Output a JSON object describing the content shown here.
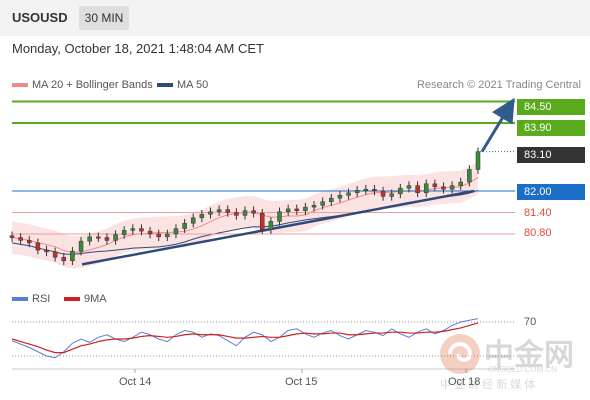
{
  "header": {
    "symbol": "USOUSD",
    "timeframe": "30 MIN"
  },
  "datetime": "Monday, October 18, 2021 1:48:04 AM CET",
  "legend": {
    "bollinger": {
      "label": "MA 20 + Bollinger Bands",
      "color": "#f08a8a"
    },
    "ma50": {
      "label": "MA 50",
      "color": "#2f4a7a"
    }
  },
  "copyright": "Research © 2021 Trading Central",
  "levels": [
    {
      "value": "84.50",
      "kind": "resistance",
      "color": "#5aaa1e"
    },
    {
      "value": "83.90",
      "kind": "resistance",
      "color": "#5aaa1e"
    },
    {
      "value": "83.10",
      "kind": "current",
      "color": "#333333"
    },
    {
      "value": "82.00",
      "kind": "pivot",
      "color": "#1a6ec8"
    },
    {
      "value": "81.40",
      "kind": "support",
      "color": "#e04a3a"
    },
    {
      "value": "80.80",
      "kind": "support",
      "color": "#e04a3a"
    }
  ],
  "rsi_panel": {
    "rsi_label": "RSI",
    "rsi_color": "#5b7fd0",
    "ma_label": "9MA",
    "ma_color": "#cc2222",
    "level_label": "70"
  },
  "x_axis": {
    "labels": [
      "Oct 14",
      "Oct 15",
      "Oct 18"
    ]
  },
  "watermark": {
    "text": "中金网",
    "sub": "CNGOLD.COM.CN",
    "tagline": "中 金 财 经 新 媒 体"
  },
  "chart_data": {
    "type": "candlestick",
    "symbol": "USOUSD",
    "interval": "30 MIN",
    "ylim": [
      80.0,
      85.0
    ],
    "price_path": [
      80.7,
      80.62,
      80.55,
      80.35,
      80.3,
      80.15,
      80.05,
      80.32,
      80.6,
      80.72,
      80.7,
      80.62,
      80.78,
      80.9,
      80.95,
      80.88,
      80.8,
      80.72,
      80.8,
      80.95,
      81.1,
      81.25,
      81.35,
      81.42,
      81.48,
      81.4,
      81.32,
      81.45,
      81.38,
      80.92,
      81.15,
      81.42,
      81.5,
      81.45,
      81.55,
      81.6,
      81.7,
      81.8,
      81.88,
      81.95,
      82.02,
      82.05,
      82.0,
      81.85,
      81.92,
      82.08,
      82.15,
      81.95,
      82.2,
      82.12,
      82.05,
      82.15,
      82.25,
      82.6,
      83.1
    ],
    "trendline": {
      "from": 79.95,
      "to": 82.0
    },
    "forecast_target": 84.5,
    "levels": {
      "resistance": [
        84.5,
        83.9
      ],
      "current": 83.1,
      "pivot": 82.0,
      "support": [
        81.4,
        80.8
      ]
    },
    "rsi": {
      "level": 70,
      "rsi_path": [
        48,
        44,
        40,
        35,
        30,
        28,
        35,
        45,
        50,
        46,
        52,
        55,
        50,
        47,
        52,
        58,
        55,
        50,
        47,
        55,
        60,
        58,
        52,
        56,
        54,
        48,
        42,
        52,
        58,
        55,
        47,
        52,
        60,
        62,
        56,
        52,
        57,
        60,
        54,
        50,
        55,
        60,
        58,
        54,
        62,
        56,
        52,
        58,
        62,
        56,
        60,
        66,
        70,
        72,
        74
      ],
      "ma_path": [
        50,
        47,
        44,
        41,
        37,
        34,
        34,
        38,
        42,
        44,
        47,
        49,
        50,
        50,
        51,
        53,
        54,
        53,
        52,
        53,
        55,
        56,
        55,
        55,
        55,
        53,
        51,
        51,
        52,
        53,
        52,
        52,
        54,
        56,
        57,
        56,
        56,
        57,
        57,
        55,
        55,
        56,
        57,
        57,
        58,
        58,
        57,
        57,
        58,
        58,
        59,
        61,
        63,
        66,
        69
      ]
    },
    "x_labels": [
      "Oct 14",
      "Oct 15",
      "Oct 18"
    ]
  }
}
